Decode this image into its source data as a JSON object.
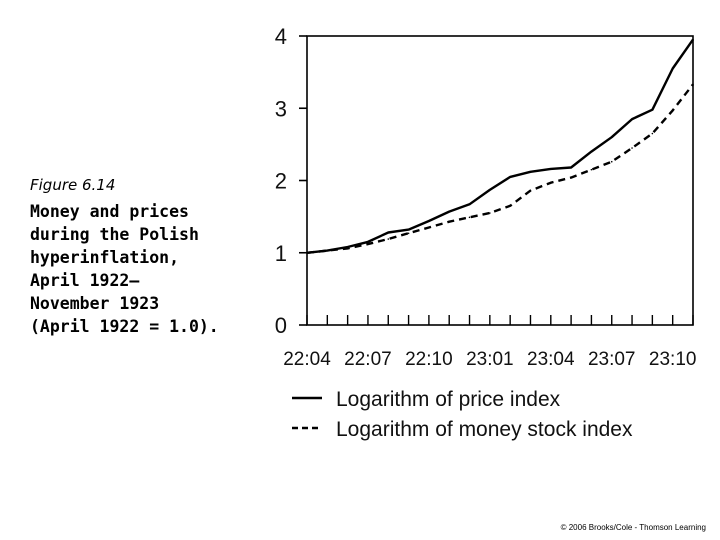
{
  "caption": {
    "figure_label": "Figure 6.14",
    "title": "Money and prices\nduring the Polish\nhyperinflation,\nApril 1922–\nNovember 1923\n(April 1922 = 1.0)."
  },
  "chart_data": {
    "type": "line",
    "title": "Money and prices during the Polish hyperinflation, April 1922–November 1923 (April 1922 = 1.0).",
    "xlabel": "",
    "ylabel": "",
    "ylim": [
      0,
      4
    ],
    "yticks": [
      0,
      1,
      2,
      3,
      4
    ],
    "xtick_labels": [
      "22:04",
      "22:07",
      "22:10",
      "23:01",
      "23:04",
      "23:07",
      "23:10"
    ],
    "x_months": [
      "22:04",
      "22:05",
      "22:06",
      "22:07",
      "22:08",
      "22:09",
      "22:10",
      "22:11",
      "22:12",
      "23:01",
      "23:02",
      "23:03",
      "23:04",
      "23:05",
      "23:06",
      "23:07",
      "23:08",
      "23:09",
      "23:10",
      "23:11"
    ],
    "series": [
      {
        "name": "Logarithm of price index",
        "style": "solid",
        "values": [
          1.0,
          1.03,
          1.08,
          1.15,
          1.28,
          1.32,
          1.44,
          1.57,
          1.67,
          1.87,
          2.05,
          2.12,
          2.16,
          2.18,
          2.4,
          2.6,
          2.85,
          2.98,
          3.55,
          3.95
        ]
      },
      {
        "name": "Logarithm of money stock index",
        "style": "dashed",
        "values": [
          1.0,
          1.03,
          1.06,
          1.12,
          1.19,
          1.27,
          1.35,
          1.43,
          1.49,
          1.55,
          1.65,
          1.86,
          1.97,
          2.04,
          2.15,
          2.26,
          2.45,
          2.65,
          2.97,
          3.33
        ]
      }
    ]
  },
  "credit": "© 2006 Brooks/Cole - Thomson Learning"
}
